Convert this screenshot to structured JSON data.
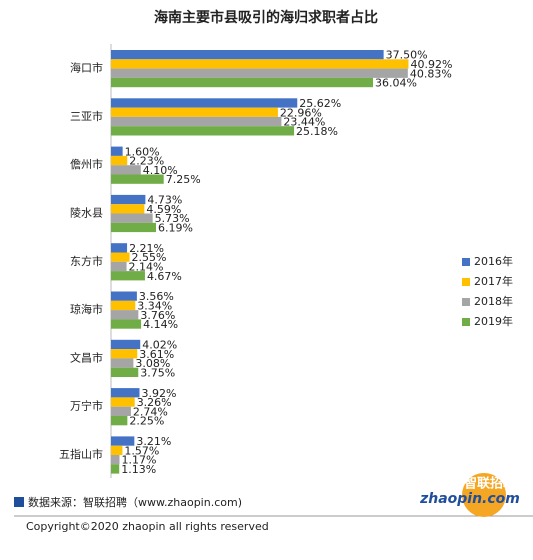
{
  "chart_data": {
    "type": "bar",
    "orientation": "horizontal",
    "title": "海南主要市县吸引的海归求职者占比",
    "categories": [
      "海口市",
      "三亚市",
      "儋州市",
      "陵水县",
      "东方市",
      "琼海市",
      "文昌市",
      "万宁市",
      "五指山市"
    ],
    "series": [
      {
        "name": "2016年",
        "color": "#4472c4",
        "values": [
          37.5,
          25.62,
          1.6,
          4.73,
          2.21,
          3.56,
          4.02,
          3.92,
          3.21
        ],
        "value_labels": [
          "37.50%",
          "25.62%",
          "1.60%",
          "4.73%",
          "2.21%",
          "3.56%",
          "4.02%",
          "3.92%",
          "3.21%"
        ]
      },
      {
        "name": "2017年",
        "color": "#ffc000",
        "values": [
          40.92,
          22.96,
          2.23,
          4.59,
          2.55,
          3.34,
          3.61,
          3.26,
          1.57
        ],
        "value_labels": [
          "40.92%",
          "22.96%",
          "2.23%",
          "4.59%",
          "2.55%",
          "3.34%",
          "3.61%",
          "3.26%",
          "1.57%"
        ]
      },
      {
        "name": "2018年",
        "color": "#a5a5a5",
        "values": [
          40.83,
          23.44,
          4.1,
          5.73,
          2.14,
          3.76,
          3.08,
          2.74,
          1.17
        ],
        "value_labels": [
          "40.83%",
          "23.44%",
          "4.10%",
          "5.73%",
          "2.14%",
          "3.76%",
          "3.08%",
          "2.74%",
          "1.17%"
        ]
      },
      {
        "name": "2019年",
        "color": "#70ad47",
        "values": [
          36.04,
          25.18,
          7.25,
          6.19,
          4.67,
          4.14,
          3.75,
          2.25,
          1.13
        ],
        "value_labels": [
          "36.04%",
          "25.18%",
          "7.25%",
          "6.19%",
          "4.67%",
          "4.14%",
          "3.75%",
          "2.25%",
          "1.13%"
        ]
      }
    ],
    "legend": "right"
  },
  "footer": {
    "source": "数据来源：智联招聘（www.zhaopin.com)",
    "copyright": "Copyright©2020 zhaopin all rights reserved",
    "logo_cn": "智联招聘",
    "logo_en": "zhaopin.com"
  }
}
